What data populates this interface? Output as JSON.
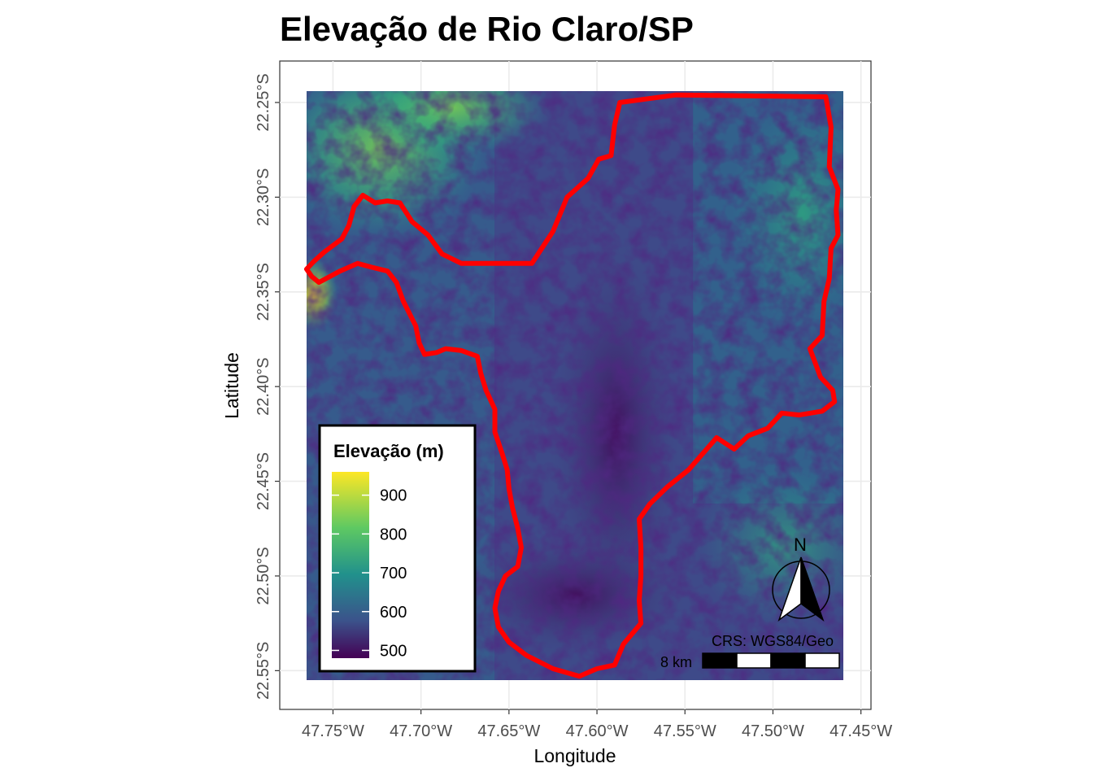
{
  "title": "Elevação de Rio Claro/SP",
  "axes": {
    "x_title": "Longitude",
    "y_title": "Latitude",
    "x_ticks": [
      "47.75°W",
      "47.70°W",
      "47.65°W",
      "47.60°W",
      "47.55°W",
      "47.50°W",
      "47.45°W"
    ],
    "y_ticks": [
      "22.25°S",
      "22.30°S",
      "22.35°S",
      "22.40°S",
      "22.45°S",
      "22.50°S",
      "22.55°S"
    ]
  },
  "legend": {
    "title": "Elevação (m)",
    "labels": [
      "900",
      "800",
      "700",
      "600",
      "500"
    ],
    "colors": [
      "#fde725",
      "#5ec962",
      "#21918c",
      "#3b528b",
      "#440154"
    ]
  },
  "north_arrow": {
    "label": "N"
  },
  "crs_label": "CRS: WGS84/Geo",
  "scalebar": {
    "label": "8 km"
  },
  "boundary_color": "#ff0000",
  "chart_data": {
    "type": "heatmap",
    "title": "Elevação de Rio Claro/SP",
    "xlabel": "Longitude",
    "ylabel": "Latitude",
    "xlim": [
      -47.765,
      -47.46
    ],
    "ylim": [
      -22.555,
      -22.244
    ],
    "x_ticks": [
      -47.75,
      -47.7,
      -47.65,
      -47.6,
      -47.55,
      -47.5,
      -47.45
    ],
    "y_ticks": [
      -22.25,
      -22.3,
      -22.35,
      -22.4,
      -22.45,
      -22.5,
      -22.55
    ],
    "value_range": [
      480,
      960
    ],
    "value_label": "Elevação (m)",
    "colormap": "viridis",
    "grid": true,
    "legend_position": "bottom-left",
    "boundary": [
      [
        -47.587,
        -22.25
      ],
      [
        -47.555,
        -22.246
      ],
      [
        -47.47,
        -22.247
      ],
      [
        -47.467,
        -22.263
      ],
      [
        -47.468,
        -22.284
      ],
      [
        -47.463,
        -22.296
      ],
      [
        -47.464,
        -22.307
      ],
      [
        -47.463,
        -22.32
      ],
      [
        -47.467,
        -22.327
      ],
      [
        -47.468,
        -22.343
      ],
      [
        -47.471,
        -22.355
      ],
      [
        -47.472,
        -22.373
      ],
      [
        -47.479,
        -22.38
      ],
      [
        -47.473,
        -22.395
      ],
      [
        -47.466,
        -22.402
      ],
      [
        -47.465,
        -22.408
      ],
      [
        -47.472,
        -22.413
      ],
      [
        -47.485,
        -22.415
      ],
      [
        -47.495,
        -22.414
      ],
      [
        -47.503,
        -22.422
      ],
      [
        -47.514,
        -22.426
      ],
      [
        -47.522,
        -22.433
      ],
      [
        -47.532,
        -22.427
      ],
      [
        -47.548,
        -22.444
      ],
      [
        -47.56,
        -22.453
      ],
      [
        -47.57,
        -22.462
      ],
      [
        -47.576,
        -22.47
      ],
      [
        -47.575,
        -22.485
      ],
      [
        -47.575,
        -22.5
      ],
      [
        -47.576,
        -22.513
      ],
      [
        -47.575,
        -22.525
      ],
      [
        -47.585,
        -22.536
      ],
      [
        -47.59,
        -22.547
      ],
      [
        -47.6,
        -22.549
      ],
      [
        -47.61,
        -22.553
      ],
      [
        -47.625,
        -22.549
      ],
      [
        -47.64,
        -22.542
      ],
      [
        -47.65,
        -22.535
      ],
      [
        -47.656,
        -22.527
      ],
      [
        -47.658,
        -22.517
      ],
      [
        -47.656,
        -22.508
      ],
      [
        -47.652,
        -22.5
      ],
      [
        -47.645,
        -22.495
      ],
      [
        -47.643,
        -22.485
      ],
      [
        -47.645,
        -22.475
      ],
      [
        -47.648,
        -22.464
      ],
      [
        -47.65,
        -22.454
      ],
      [
        -47.651,
        -22.444
      ],
      [
        -47.654,
        -22.435
      ],
      [
        -47.658,
        -22.424
      ],
      [
        -47.658,
        -22.412
      ],
      [
        -47.663,
        -22.402
      ],
      [
        -47.666,
        -22.393
      ],
      [
        -47.668,
        -22.384
      ],
      [
        -47.677,
        -22.381
      ],
      [
        -47.686,
        -22.38
      ],
      [
        -47.691,
        -22.382
      ],
      [
        -47.698,
        -22.383
      ],
      [
        -47.701,
        -22.377
      ],
      [
        -47.703,
        -22.368
      ],
      [
        -47.71,
        -22.355
      ],
      [
        -47.714,
        -22.345
      ],
      [
        -47.719,
        -22.339
      ],
      [
        -47.728,
        -22.337
      ],
      [
        -47.736,
        -22.335
      ],
      [
        -47.746,
        -22.339
      ],
      [
        -47.758,
        -22.345
      ],
      [
        -47.762,
        -22.342
      ],
      [
        -47.765,
        -22.338
      ],
      [
        -47.761,
        -22.334
      ],
      [
        -47.755,
        -22.329
      ],
      [
        -47.745,
        -22.322
      ],
      [
        -47.741,
        -22.315
      ],
      [
        -47.738,
        -22.305
      ],
      [
        -47.733,
        -22.299
      ],
      [
        -47.726,
        -22.303
      ],
      [
        -47.719,
        -22.302
      ],
      [
        -47.712,
        -22.303
      ],
      [
        -47.705,
        -22.313
      ],
      [
        -47.696,
        -22.32
      ],
      [
        -47.688,
        -22.33
      ],
      [
        -47.677,
        -22.335
      ],
      [
        -47.653,
        -22.335
      ],
      [
        -47.637,
        -22.335
      ],
      [
        -47.625,
        -22.318
      ],
      [
        -47.617,
        -22.3
      ],
      [
        -47.605,
        -22.29
      ],
      [
        -47.599,
        -22.28
      ],
      [
        -47.592,
        -22.278
      ],
      [
        -47.59,
        -22.262
      ],
      [
        -47.587,
        -22.25
      ]
    ]
  }
}
